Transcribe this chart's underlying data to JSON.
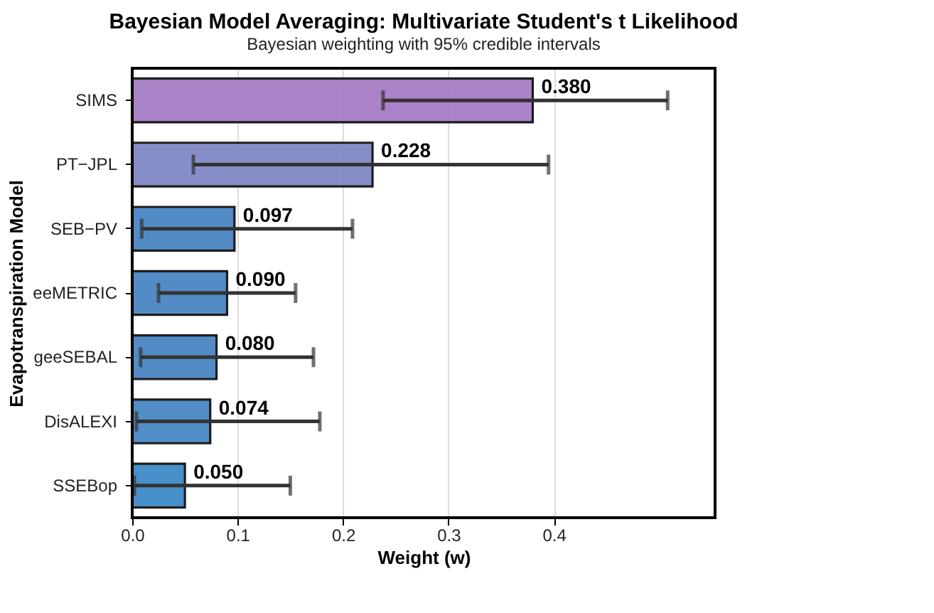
{
  "chart_data": {
    "type": "bar",
    "orientation": "horizontal",
    "title": "Bayesian Model Averaging: Multivariate Student's t Likelihood",
    "subtitle": "Bayesian weighting with 95% credible intervals",
    "xlabel": "Weight (w)",
    "ylabel": "Evapotranspiration Model",
    "categories": [
      "SIMS",
      "PT−JPL",
      "SEB−PV",
      "eeMETRIC",
      "geeSEBAL",
      "DisALEXI",
      "SSEBop"
    ],
    "values": [
      0.38,
      0.228,
      0.097,
      0.09,
      0.08,
      0.074,
      0.05
    ],
    "value_labels": [
      "0.380",
      "0.228",
      "0.097",
      "0.090",
      "0.080",
      "0.074",
      "0.050"
    ],
    "colors": [
      "#a67cc5",
      "#8088c6",
      "#4a85c4",
      "#4a85c4",
      "#4a85c4",
      "#4887c5",
      "#3f8bc7"
    ],
    "errors": [
      [
        0.238,
        0.508
      ],
      [
        0.058,
        0.395
      ],
      [
        0.009,
        0.209
      ],
      [
        0.025,
        0.155
      ],
      [
        0.008,
        0.172
      ],
      [
        0.004,
        0.178
      ],
      [
        0.002,
        0.15
      ]
    ],
    "xlim": [
      0,
      0.553
    ],
    "xticks": [
      {
        "value": 0,
        "label": "0.0"
      },
      0.1,
      0.2,
      0.3,
      0.4
    ],
    "grid": "x"
  }
}
